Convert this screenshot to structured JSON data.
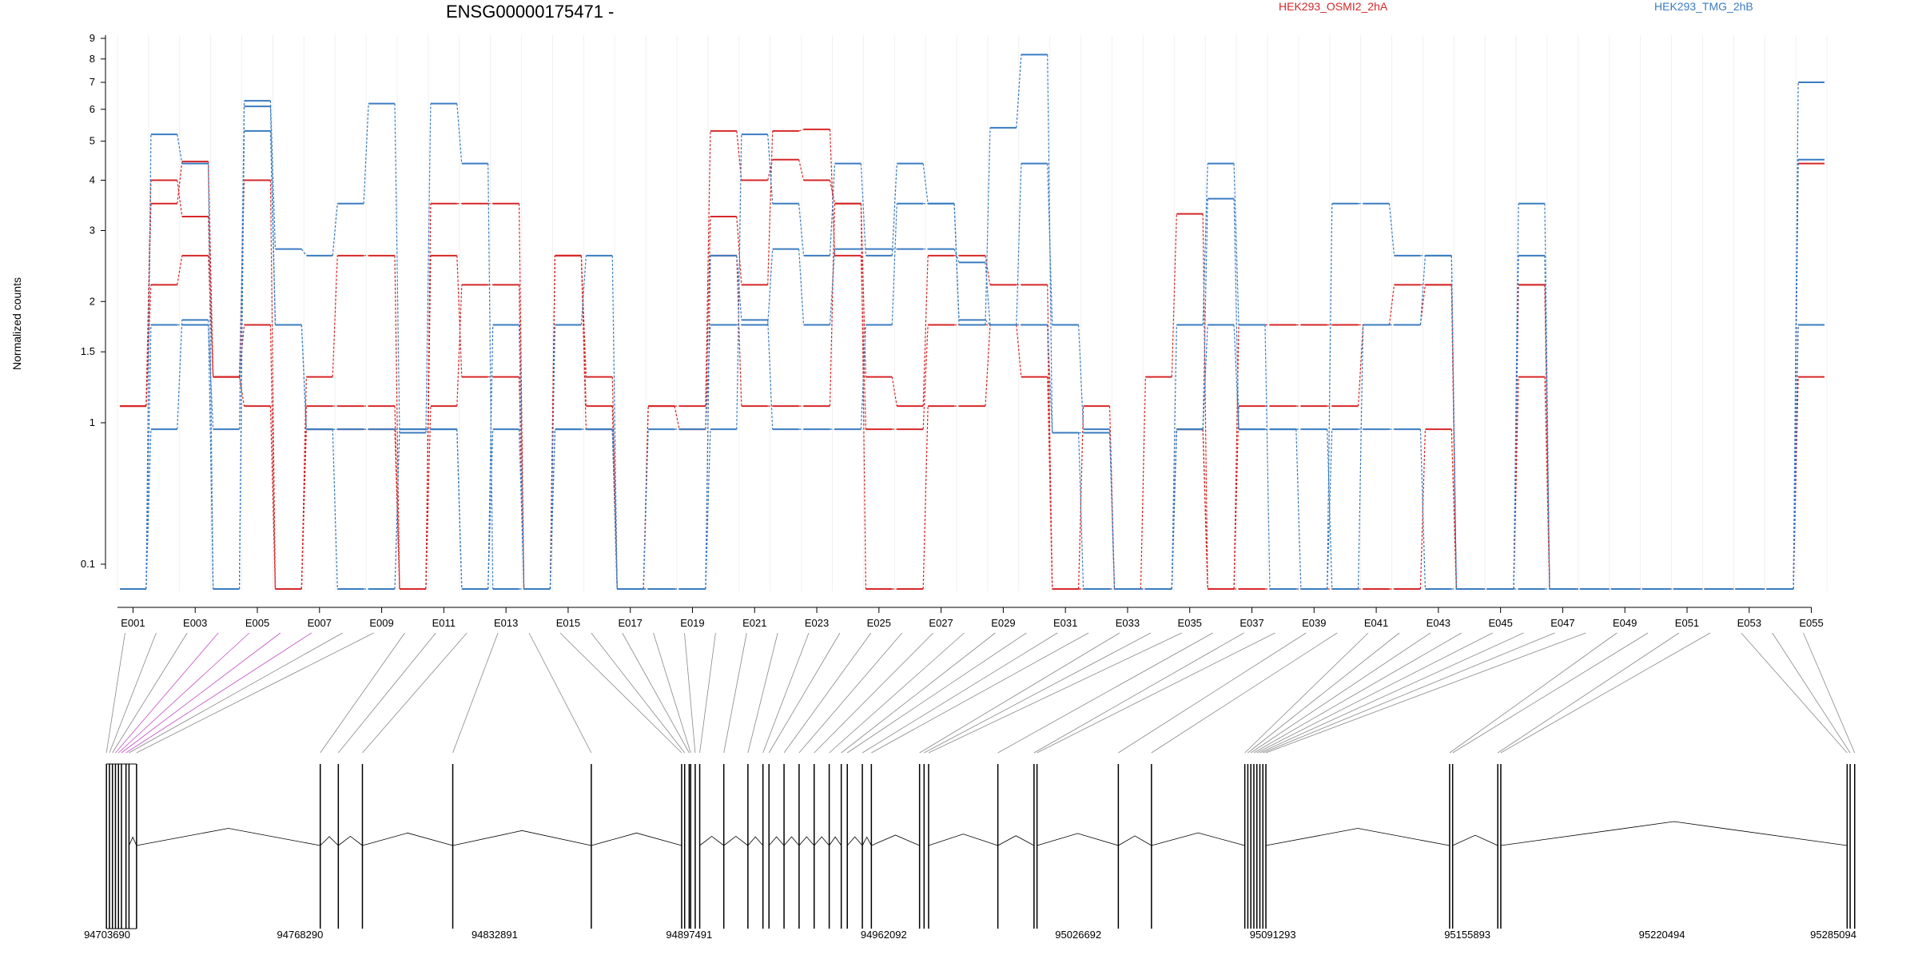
{
  "chart_data": {
    "type": "line",
    "title": "ENSG00000175471 -",
    "ylabel": "Normalized counts",
    "yscale": "log",
    "y_ticks": [
      0.1,
      1,
      1.5,
      2,
      3,
      4,
      5,
      6,
      7,
      8,
      9
    ],
    "y_tick_labels": [
      "0.1",
      "1",
      "1.5",
      "2",
      "3",
      "4",
      "5",
      "6",
      "7",
      "8",
      "9"
    ],
    "y_floor": 0.07,
    "grid": true,
    "legend": [
      {
        "label": "HEK293_OSMI2_2hA",
        "color": "#d62728"
      },
      {
        "label": "HEK293_TMG_2hB",
        "color": "#3a7cc0"
      }
    ],
    "x_tick_labels": [
      "E001",
      "E003",
      "E005",
      "E007",
      "E009",
      "E011",
      "E013",
      "E015",
      "E017",
      "E019",
      "E021",
      "E023",
      "E025",
      "E027",
      "E029",
      "E031",
      "E033",
      "E035",
      "E037",
      "E039",
      "E041",
      "E043",
      "E045",
      "E047",
      "E049",
      "E051",
      "E053",
      "E055"
    ],
    "exons": [
      "E001",
      "E002",
      "E003",
      "E004",
      "E005",
      "E006",
      "E007",
      "E008",
      "E009",
      "E010",
      "E011",
      "E012",
      "E013",
      "E014",
      "E015",
      "E016",
      "E017",
      "E018",
      "E019",
      "E020",
      "E021",
      "E022",
      "E023",
      "E024",
      "E025",
      "E026",
      "E027",
      "E028",
      "E029",
      "E030",
      "E031",
      "E032",
      "E033",
      "E034",
      "E035",
      "E036",
      "E037",
      "E038",
      "E039",
      "E040",
      "E041",
      "E042",
      "E043",
      "E044",
      "E045",
      "E046",
      "E047",
      "E048",
      "E049",
      "E050",
      "E051",
      "E052",
      "E053",
      "E054",
      "E055"
    ],
    "series": [
      {
        "group": 0,
        "values": [
          1.1,
          3.5,
          4.45,
          1.3,
          4.0,
          0.07,
          1.3,
          2.6,
          2.6,
          0.07,
          3.5,
          3.5,
          3.5,
          0.07,
          2.6,
          1.3,
          0.07,
          1.1,
          1.1,
          5.3,
          4.0,
          4.5,
          4.0,
          3.5,
          1.3,
          1.1,
          2.6,
          2.6,
          2.2,
          2.2,
          0.07,
          1.1,
          0.07,
          1.3,
          3.3,
          0.07,
          1.1,
          1.1,
          1.1,
          1.1,
          1.75,
          1.75,
          2.2,
          0.07,
          0.07,
          2.2,
          0.07,
          0.07,
          0.07,
          0.07,
          0.07,
          0.07,
          0.07,
          0.07,
          4.4
        ]
      },
      {
        "group": 0,
        "values": [
          1.1,
          4.0,
          3.25,
          1.3,
          1.1,
          0.07,
          0.9,
          0.9,
          0.9,
          0.07,
          1.1,
          2.2,
          2.2,
          0.07,
          2.6,
          1.1,
          0.07,
          1.1,
          0.9,
          3.25,
          2.2,
          5.3,
          5.35,
          2.6,
          0.9,
          0.9,
          1.75,
          1.75,
          1.75,
          1.3,
          0.07,
          0.07,
          0.07,
          0.07,
          0.9,
          0.07,
          1.75,
          1.75,
          1.75,
          1.75,
          1.75,
          2.2,
          2.2,
          0.07,
          0.07,
          1.3,
          0.07,
          0.07,
          0.07,
          0.07,
          0.07,
          0.07,
          0.07,
          0.07,
          1.75
        ]
      },
      {
        "group": 0,
        "values": [
          1.1,
          2.2,
          2.6,
          1.3,
          1.75,
          0.07,
          1.1,
          1.1,
          1.1,
          0.07,
          2.6,
          1.3,
          1.3,
          0.07,
          2.6,
          0.9,
          0.07,
          0.07,
          0.07,
          2.6,
          1.1,
          1.1,
          1.1,
          3.5,
          0.07,
          0.07,
          1.1,
          1.1,
          1.75,
          1.75,
          0.07,
          0.07,
          0.07,
          0.07,
          0.9,
          0.07,
          0.07,
          0.07,
          0.07,
          0.07,
          0.07,
          0.07,
          0.9,
          0.07,
          0.07,
          2.2,
          0.07,
          0.07,
          0.07,
          0.07,
          0.07,
          0.07,
          0.07,
          0.07,
          1.3
        ]
      },
      {
        "group": 1,
        "values": [
          0.07,
          5.2,
          4.4,
          0.07,
          6.3,
          2.7,
          2.6,
          3.5,
          6.2,
          0.85,
          6.2,
          4.4,
          0.07,
          0.07,
          1.75,
          2.6,
          0.07,
          0.07,
          0.07,
          0.9,
          5.2,
          3.5,
          2.6,
          4.4,
          2.6,
          4.4,
          3.5,
          1.75,
          5.4,
          8.2,
          0.85,
          0.85,
          0.07,
          0.07,
          1.75,
          4.4,
          1.75,
          0.07,
          0.07,
          3.5,
          3.5,
          2.6,
          2.6,
          0.07,
          0.07,
          3.5,
          0.07,
          0.07,
          0.07,
          0.07,
          0.07,
          0.07,
          0.07,
          0.07,
          7.0
        ]
      },
      {
        "group": 1,
        "values": [
          0.07,
          1.75,
          1.75,
          0.9,
          6.1,
          1.75,
          0.9,
          0.9,
          0.9,
          0.9,
          0.9,
          0.07,
          1.75,
          0.07,
          0.9,
          0.9,
          0.07,
          0.9,
          0.9,
          1.75,
          1.75,
          2.7,
          1.75,
          2.7,
          2.7,
          2.7,
          2.7,
          2.5,
          1.75,
          4.4,
          1.75,
          0.9,
          0.07,
          0.07,
          0.9,
          1.75,
          0.9,
          0.9,
          0.07,
          0.9,
          0.9,
          0.9,
          0.07,
          0.07,
          0.07,
          2.6,
          0.07,
          0.07,
          0.07,
          0.07,
          0.07,
          0.07,
          0.07,
          0.07,
          4.5
        ]
      },
      {
        "group": 1,
        "values": [
          0.07,
          0.9,
          1.8,
          0.07,
          5.3,
          1.75,
          0.9,
          0.07,
          0.07,
          0.9,
          0.9,
          0.07,
          0.9,
          0.07,
          0.9,
          0.9,
          0.07,
          0.07,
          0.07,
          2.6,
          1.8,
          0.9,
          0.9,
          0.9,
          1.75,
          3.5,
          3.5,
          1.8,
          1.75,
          1.75,
          0.85,
          0.07,
          0.07,
          0.07,
          0.9,
          3.6,
          0.9,
          0.9,
          0.9,
          0.07,
          1.75,
          1.75,
          2.6,
          0.07,
          0.07,
          0.07,
          0.07,
          0.07,
          0.07,
          0.07,
          0.07,
          0.07,
          0.07,
          0.07,
          1.75
        ]
      }
    ],
    "genome_labels": [
      "94703690",
      "94768290",
      "94832891",
      "94897491",
      "94962092",
      "95026692",
      "95091293",
      "95155893",
      "95220494",
      "95285094"
    ],
    "genome_range": [
      94703690,
      95285094
    ],
    "exon_positions": [
      94704000,
      94705000,
      94706000,
      94707000,
      94708000,
      94709000,
      94710500,
      94711500,
      94714000,
      94775000,
      94781000,
      94789000,
      94819000,
      94865000,
      94895000,
      94896000,
      94897500,
      94898000,
      94899500,
      94901000,
      94909000,
      94917000,
      94922000,
      94924000,
      94929000,
      94934000,
      94939000,
      94944000,
      94948000,
      94950000,
      94955000,
      94958000,
      94974000,
      94975500,
      94977000,
      95000000,
      95012000,
      95013000,
      95040000,
      95051000,
      95082000,
      95083000,
      95084000,
      95085000,
      95086000,
      95087000,
      95088000,
      95089000,
      95150000,
      95151000,
      95166000,
      95167000,
      95282000,
      95283000,
      95284500
    ]
  }
}
